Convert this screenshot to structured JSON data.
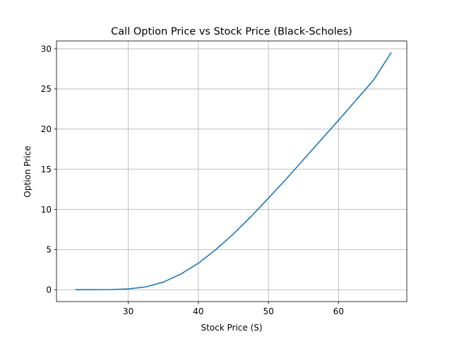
{
  "chart_data": {
    "type": "line",
    "title": "Call Option Price vs Stock Price (Black-Scholes)",
    "xlabel": "Stock Price (S)",
    "ylabel": "Option Price",
    "xlim": [
      19.75,
      69.75
    ],
    "ylim": [
      -1.475,
      30.975
    ],
    "xticks": [
      30,
      40,
      50,
      60
    ],
    "yticks": [
      0,
      5,
      10,
      15,
      20,
      25,
      30
    ],
    "grid": true,
    "series": [
      {
        "color": "#1f77b4",
        "x": [
          22.5,
          25,
          27.5,
          30,
          32.5,
          35,
          37.5,
          40,
          42.5,
          45,
          47.5,
          50,
          52.5,
          55,
          57.5,
          60,
          62.5,
          65,
          67.5
        ],
        "y": [
          0.0,
          0.0,
          0.02,
          0.1,
          0.35,
          0.95,
          1.95,
          3.3,
          5.0,
          6.95,
          9.1,
          11.4,
          13.75,
          16.2,
          18.65,
          21.1,
          23.6,
          26.1,
          29.5
        ]
      }
    ]
  }
}
